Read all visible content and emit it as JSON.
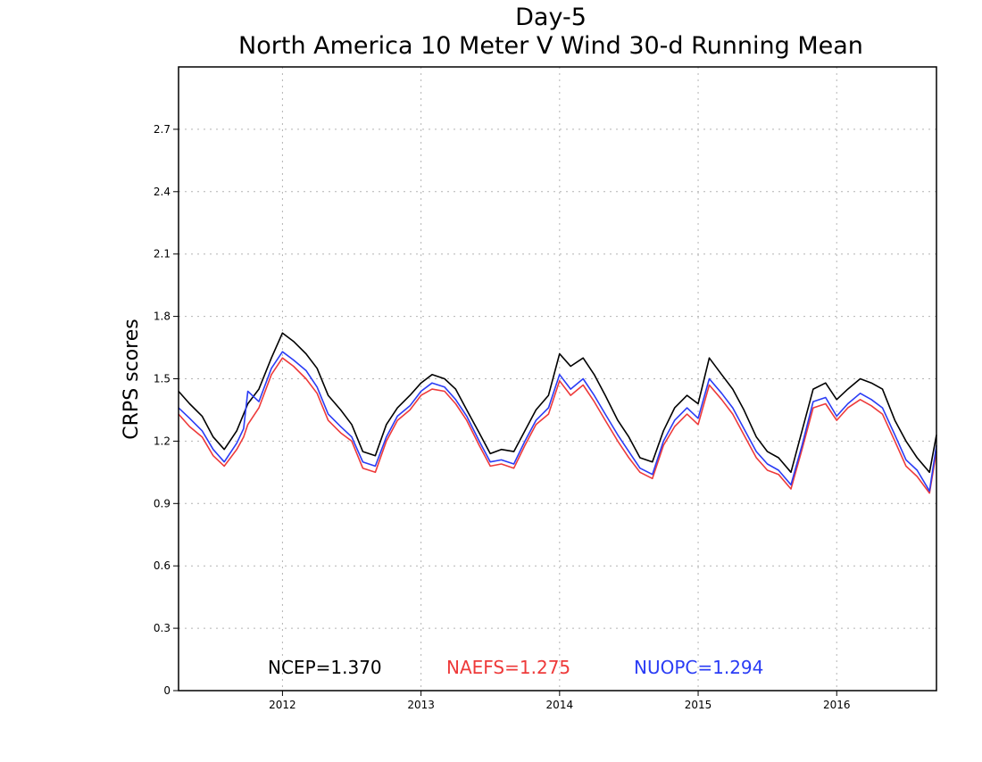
{
  "chart_data": {
    "type": "line",
    "title_line1": "Day-5",
    "title_line2": "North America 10 Meter V Wind 30-d Running Mean",
    "ylabel": "CRPS scores",
    "xlabel": "",
    "ylim": [
      0,
      3.0
    ],
    "xlim": [
      2011.25,
      2016.72
    ],
    "yticks": [
      0,
      0.3,
      0.6,
      0.9,
      1.2,
      1.5,
      1.8,
      2.1,
      2.4,
      2.7
    ],
    "ytick_labels": [
      "0",
      "0.3",
      "0.6",
      "0.9",
      "1.2",
      "1.5",
      "1.8",
      "2.1",
      "2.4",
      "2.7"
    ],
    "xticks": [
      2012.0,
      2013.0,
      2014.0,
      2015.0,
      2016.0
    ],
    "xtick_labels": [
      "2012",
      "2013",
      "2014",
      "2015",
      "2016"
    ],
    "grid": true,
    "x": [
      2011.25,
      2011.33,
      2011.42,
      2011.5,
      2011.58,
      2011.67,
      2011.72,
      2011.75,
      2011.83,
      2011.92,
      2012.0,
      2012.08,
      2012.17,
      2012.25,
      2012.33,
      2012.42,
      2012.5,
      2012.58,
      2012.67,
      2012.75,
      2012.83,
      2012.92,
      2013.0,
      2013.08,
      2013.17,
      2013.25,
      2013.33,
      2013.42,
      2013.5,
      2013.58,
      2013.67,
      2013.75,
      2013.83,
      2013.92,
      2014.0,
      2014.08,
      2014.17,
      2014.25,
      2014.33,
      2014.42,
      2014.5,
      2014.58,
      2014.67,
      2014.75,
      2014.83,
      2014.92,
      2015.0,
      2015.08,
      2015.17,
      2015.25,
      2015.33,
      2015.42,
      2015.5,
      2015.58,
      2015.67,
      2015.75,
      2015.83,
      2015.92,
      2016.0,
      2016.08,
      2016.17,
      2016.25,
      2016.33,
      2016.42,
      2016.5,
      2016.58,
      2016.67,
      2016.72
    ],
    "series": [
      {
        "name": "NCEP",
        "color": "#000000",
        "summary": "NCEP=1.370",
        "values": [
          1.44,
          1.38,
          1.32,
          1.22,
          1.16,
          1.25,
          1.33,
          1.38,
          1.45,
          1.6,
          1.72,
          1.68,
          1.62,
          1.55,
          1.42,
          1.35,
          1.28,
          1.15,
          1.13,
          1.28,
          1.36,
          1.42,
          1.48,
          1.52,
          1.5,
          1.45,
          1.35,
          1.24,
          1.14,
          1.16,
          1.15,
          1.25,
          1.35,
          1.42,
          1.62,
          1.56,
          1.6,
          1.52,
          1.42,
          1.3,
          1.22,
          1.12,
          1.1,
          1.25,
          1.36,
          1.42,
          1.38,
          1.6,
          1.52,
          1.45,
          1.35,
          1.22,
          1.15,
          1.12,
          1.05,
          1.25,
          1.45,
          1.48,
          1.4,
          1.45,
          1.5,
          1.48,
          1.45,
          1.3,
          1.2,
          1.12,
          1.05,
          1.23
        ]
      },
      {
        "name": "NAEFS",
        "color": "#ee3a3a",
        "summary": "NAEFS=1.275",
        "values": [
          1.33,
          1.27,
          1.22,
          1.13,
          1.08,
          1.16,
          1.22,
          1.28,
          1.36,
          1.52,
          1.6,
          1.56,
          1.5,
          1.43,
          1.3,
          1.24,
          1.2,
          1.07,
          1.05,
          1.2,
          1.3,
          1.35,
          1.42,
          1.45,
          1.44,
          1.38,
          1.3,
          1.18,
          1.08,
          1.09,
          1.07,
          1.18,
          1.28,
          1.33,
          1.49,
          1.42,
          1.47,
          1.39,
          1.3,
          1.2,
          1.12,
          1.05,
          1.02,
          1.18,
          1.27,
          1.33,
          1.28,
          1.47,
          1.4,
          1.33,
          1.23,
          1.12,
          1.06,
          1.04,
          0.97,
          1.16,
          1.36,
          1.38,
          1.3,
          1.36,
          1.4,
          1.37,
          1.33,
          1.2,
          1.08,
          1.03,
          0.95,
          1.15
        ]
      },
      {
        "name": "NUOPC",
        "color": "#2a3cf5",
        "summary": "NUOPC=1.294",
        "values": [
          1.36,
          1.31,
          1.25,
          1.16,
          1.1,
          1.19,
          1.26,
          1.44,
          1.39,
          1.55,
          1.63,
          1.59,
          1.54,
          1.46,
          1.33,
          1.27,
          1.22,
          1.1,
          1.08,
          1.22,
          1.32,
          1.37,
          1.44,
          1.48,
          1.46,
          1.4,
          1.32,
          1.2,
          1.1,
          1.11,
          1.09,
          1.2,
          1.3,
          1.36,
          1.52,
          1.45,
          1.5,
          1.42,
          1.33,
          1.23,
          1.15,
          1.07,
          1.04,
          1.2,
          1.3,
          1.36,
          1.31,
          1.5,
          1.43,
          1.36,
          1.26,
          1.15,
          1.09,
          1.06,
          0.99,
          1.18,
          1.39,
          1.41,
          1.32,
          1.38,
          1.43,
          1.4,
          1.36,
          1.23,
          1.11,
          1.06,
          0.96,
          1.18
        ]
      }
    ]
  }
}
